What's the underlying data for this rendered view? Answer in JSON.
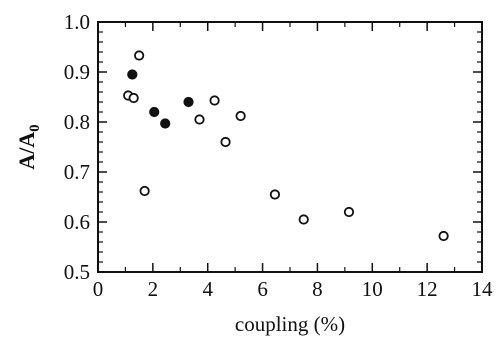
{
  "chart_data": {
    "type": "scatter",
    "title": "",
    "xlabel": "coupling (%)",
    "ylabel": {
      "main": "A/A",
      "subscript": "0"
    },
    "xlim": [
      0,
      14
    ],
    "ylim": [
      0.5,
      1.0
    ],
    "x_ticks": [
      "0",
      "2",
      "4",
      "6",
      "8",
      "10",
      "12",
      "14"
    ],
    "y_ticks": [
      "0.5",
      "0.6",
      "0.7",
      "0.8",
      "0.9",
      "1.0"
    ],
    "grid": false,
    "legend": "none",
    "series": [
      {
        "marker": "filled-circle",
        "color": "#111111",
        "points": [
          {
            "x": 1.25,
            "y": 0.895
          },
          {
            "x": 2.05,
            "y": 0.82
          },
          {
            "x": 2.45,
            "y": 0.797
          },
          {
            "x": 3.3,
            "y": 0.84
          }
        ]
      },
      {
        "marker": "open-circle",
        "color": "#111111",
        "points": [
          {
            "x": 1.1,
            "y": 0.853
          },
          {
            "x": 1.3,
            "y": 0.848
          },
          {
            "x": 1.5,
            "y": 0.933
          },
          {
            "x": 1.7,
            "y": 0.662
          },
          {
            "x": 3.7,
            "y": 0.805
          },
          {
            "x": 4.25,
            "y": 0.843
          },
          {
            "x": 4.65,
            "y": 0.76
          },
          {
            "x": 5.2,
            "y": 0.812
          },
          {
            "x": 6.45,
            "y": 0.655
          },
          {
            "x": 7.5,
            "y": 0.605
          },
          {
            "x": 9.15,
            "y": 0.62
          },
          {
            "x": 12.6,
            "y": 0.572
          }
        ]
      }
    ]
  }
}
